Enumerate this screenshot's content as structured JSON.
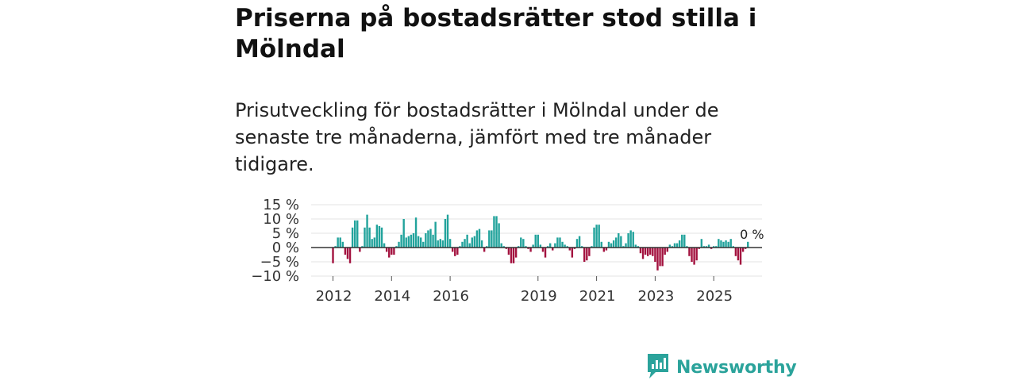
{
  "title": "Priserna på bostadsrätter stod stilla i Mölndal",
  "subtitle": "Prisutveckling för bostadsrätter i Mölndal under de senaste tre månaderna, jämfört med tre månader tidigare.",
  "brand": {
    "name": "Newsworthy",
    "icon": "newsworthy-logo-icon"
  },
  "colors": {
    "positive": "#22a39c",
    "negative": "#a3123f",
    "zero_line": "#333333",
    "grid": "#e3e3e3",
    "brand": "#2ba39b"
  },
  "chart_data": {
    "type": "bar",
    "title": "Priserna på bostadsrätter stod stilla i Mölndal",
    "xlabel": "",
    "ylabel": "",
    "ylim": [
      -10,
      15
    ],
    "yticks": [
      15,
      10,
      5,
      0,
      -5,
      -10
    ],
    "ytick_labels": [
      "15 %",
      "10 %",
      "5 %",
      "0 %",
      "−5 %",
      "−10 %"
    ],
    "xticks": [
      2012,
      2014,
      2016,
      2019,
      2021,
      2023,
      2025
    ],
    "xtick_labels": [
      "2012",
      "2014",
      "2016",
      "2019",
      "2021",
      "2023",
      "2025"
    ],
    "x_start": "2012-01",
    "frequency": "monthly",
    "annotation": {
      "text": "0 %",
      "target": "last value"
    },
    "grid": true,
    "values": [
      -5.5,
      0.5,
      3.5,
      3.5,
      2,
      -2.5,
      -4,
      -5.5,
      7,
      9.5,
      9.5,
      -1.5,
      0.5,
      7,
      11.5,
      7,
      3,
      3.5,
      8,
      7.5,
      7,
      1.5,
      -1.5,
      -3.5,
      -2.5,
      -2.5,
      0.5,
      2,
      4.5,
      10,
      3.5,
      4,
      4.5,
      5,
      10.5,
      4,
      3.5,
      2,
      5,
      6,
      6.5,
      4.5,
      9,
      2.5,
      3,
      2.5,
      10,
      11.5,
      3,
      -1.5,
      -3,
      -2.5,
      0.5,
      2,
      3,
      4.5,
      1.5,
      3.5,
      4,
      6,
      6.5,
      2.5,
      -1.5,
      0.5,
      6,
      6,
      11,
      11,
      8.5,
      1.5,
      0.5,
      -0.5,
      -2.5,
      -5.5,
      -5.5,
      -3.5,
      0.5,
      3.5,
      3,
      0.5,
      -0.5,
      -1.5,
      1,
      4.5,
      4.5,
      1,
      -1.5,
      -3.5,
      0.5,
      1.5,
      -1,
      1.5,
      3.5,
      3.5,
      2,
      1,
      0.5,
      -1,
      -3.5,
      -0.5,
      3,
      4,
      0.5,
      -5,
      -4.5,
      -3,
      0.5,
      7,
      8,
      8,
      2,
      -1.5,
      -1,
      2,
      1.5,
      2.5,
      3.5,
      5,
      4,
      0.5,
      1.5,
      5,
      6,
      5.5,
      1,
      0.5,
      -2,
      -4,
      -2.5,
      -3,
      -2.5,
      -3,
      -5,
      -8,
      -6.5,
      -6.5,
      -2.5,
      -1.5,
      1,
      0.5,
      1.5,
      1.5,
      2.5,
      4.5,
      4.5,
      0.5,
      -3,
      -5,
      -6,
      -4.5,
      -0.5,
      3,
      0.5,
      0.5,
      1,
      -0.5,
      0.5,
      0.5,
      3,
      2.5,
      2,
      2.5,
      2,
      3,
      0.5,
      -3,
      -4.5,
      -6,
      -1.5,
      -0.5,
      2,
      0
    ]
  }
}
